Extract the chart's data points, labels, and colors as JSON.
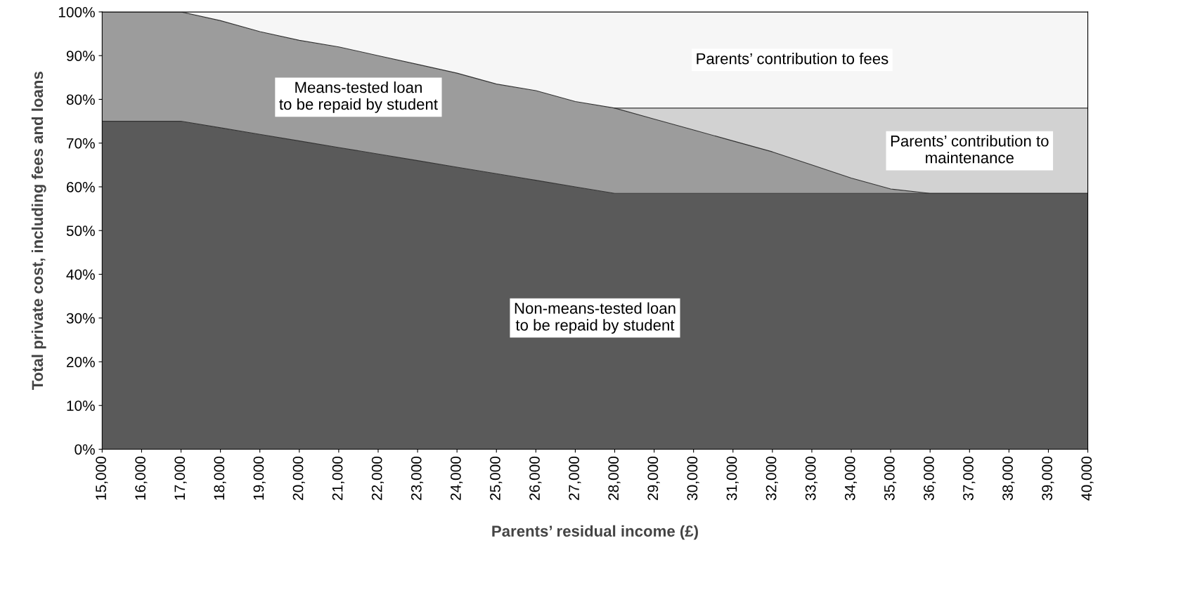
{
  "chart_data": {
    "type": "area",
    "stacked": true,
    "xlabel": "Parents’ residual income (£)",
    "ylabel": "Total private cost, including fees and loans",
    "x": [
      15000,
      16000,
      17000,
      18000,
      19000,
      20000,
      21000,
      22000,
      23000,
      24000,
      25000,
      26000,
      27000,
      28000,
      29000,
      30000,
      31000,
      32000,
      33000,
      34000,
      35000,
      36000,
      37000,
      38000,
      39000,
      40000
    ],
    "series": [
      {
        "name": "Non-means-tested loan\nto be repaid by student",
        "color": "#5a5a5a",
        "values": [
          75,
          75,
          75,
          73.5,
          72,
          70.5,
          69,
          67.5,
          66,
          64.5,
          63,
          61.5,
          60,
          58.5,
          58.5,
          58.5,
          58.5,
          58.5,
          58.5,
          58.5,
          58.5,
          58.5,
          58.5,
          58.5,
          58.5,
          58.5
        ]
      },
      {
        "name": "Means-tested loan\nto be repaid by student",
        "color": "#9c9c9c",
        "values": [
          25,
          25,
          25,
          24.5,
          23.5,
          23,
          23,
          22.5,
          22,
          21.5,
          20.5,
          20.5,
          19.5,
          19.5,
          17,
          14.5,
          12,
          9.5,
          6.5,
          3.5,
          1,
          0,
          0,
          0,
          0,
          0
        ]
      },
      {
        "name": "Parents’ contribution to\nmaintenance",
        "color": "#d2d2d2",
        "values": [
          null,
          null,
          null,
          null,
          null,
          null,
          null,
          null,
          null,
          null,
          null,
          null,
          null,
          0,
          2.5,
          5,
          7.5,
          10,
          13,
          16,
          18.5,
          19.5,
          19.5,
          19.5,
          19.5,
          19.5
        ]
      },
      {
        "name": "Parents’ contribution to fees",
        "color": "#f6f6f6",
        "values": [
          0,
          0,
          0,
          2,
          4.5,
          6.5,
          8,
          10,
          12,
          14,
          16.5,
          18,
          20.5,
          22,
          22,
          22,
          22,
          22,
          22,
          22,
          22,
          22,
          22,
          22,
          22,
          22
        ]
      }
    ],
    "xlim": [
      15000,
      40000
    ],
    "xticks": [
      {
        "value": 15000,
        "label": "15,000"
      },
      {
        "value": 16000,
        "label": "16,000"
      },
      {
        "value": 17000,
        "label": "17,000"
      },
      {
        "value": 18000,
        "label": "18,000"
      },
      {
        "value": 19000,
        "label": "19,000"
      },
      {
        "value": 20000,
        "label": "20,000"
      },
      {
        "value": 21000,
        "label": "21,000"
      },
      {
        "value": 22000,
        "label": "22,000"
      },
      {
        "value": 23000,
        "label": "23,000"
      },
      {
        "value": 24000,
        "label": "24,000"
      },
      {
        "value": 25000,
        "label": "25,000"
      },
      {
        "value": 26000,
        "label": "26,000"
      },
      {
        "value": 27000,
        "label": "27,000"
      },
      {
        "value": 28000,
        "label": "28,000"
      },
      {
        "value": 29000,
        "label": "29,000"
      },
      {
        "value": 30000,
        "label": "30,000"
      },
      {
        "value": 31000,
        "label": "31,000"
      },
      {
        "value": 32000,
        "label": "32,000"
      },
      {
        "value": 33000,
        "label": "33,000"
      },
      {
        "value": 34000,
        "label": "34,000"
      },
      {
        "value": 35000,
        "label": "35,000"
      },
      {
        "value": 36000,
        "label": "36,000"
      },
      {
        "value": 37000,
        "label": "37,000"
      },
      {
        "value": 38000,
        "label": "38,000"
      },
      {
        "value": 39000,
        "label": "39,000"
      },
      {
        "value": 40000,
        "label": "40,000"
      }
    ],
    "ylim": [
      0,
      100
    ],
    "yticks": [
      {
        "value": 0,
        "label": "0%"
      },
      {
        "value": 10,
        "label": "10%"
      },
      {
        "value": 20,
        "label": "20%"
      },
      {
        "value": 30,
        "label": "30%"
      },
      {
        "value": 40,
        "label": "40%"
      },
      {
        "value": 50,
        "label": "50%"
      },
      {
        "value": 60,
        "label": "60%"
      },
      {
        "value": 70,
        "label": "70%"
      },
      {
        "value": 80,
        "label": "80%"
      },
      {
        "value": 90,
        "label": "90%"
      },
      {
        "value": 100,
        "label": "100%"
      }
    ],
    "grid": false,
    "legend": false
  }
}
